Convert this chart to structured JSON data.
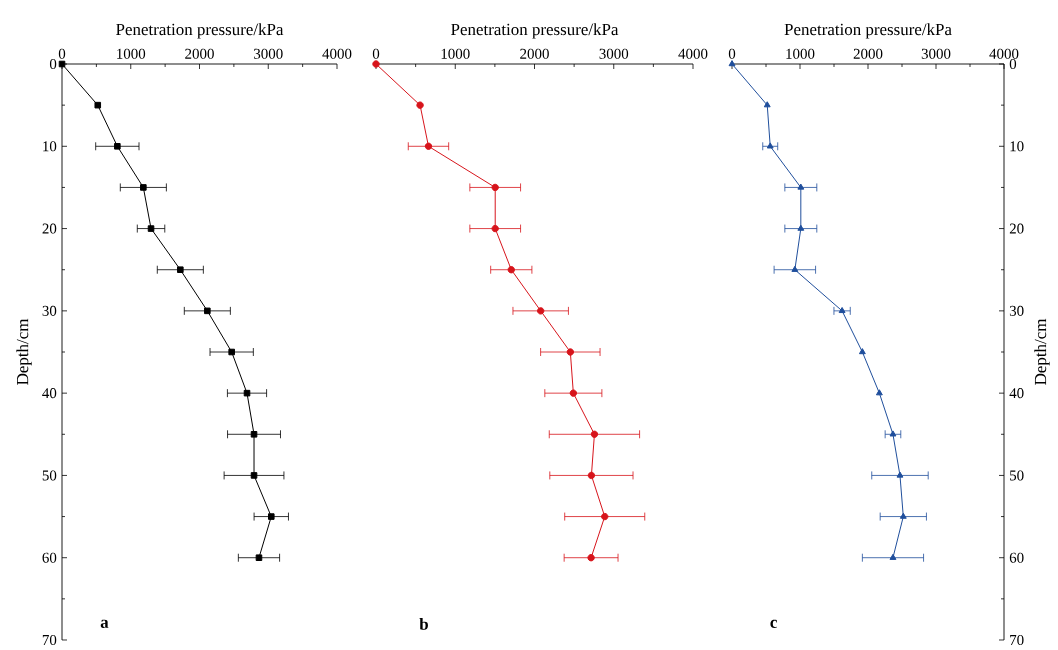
{
  "chart_data": [
    {
      "type": "line",
      "xlabel": "Penetration pressure/kPa",
      "ylabel": "Depth/cm",
      "annotations": [
        "a"
      ],
      "marker": "square",
      "xlim": [
        0,
        4000
      ],
      "xticks": [
        0,
        {
          "value": 500,
          "label": null
        },
        1000,
        {
          "value": 1500,
          "label": null
        },
        2000,
        {
          "value": 2500,
          "label": null
        },
        3000,
        {
          "value": 3500,
          "label": null
        },
        4000
      ],
      "ylim": [
        70,
        0
      ],
      "yticks": [
        0,
        {
          "value": 5,
          "label": null
        },
        10,
        {
          "value": 15,
          "label": null
        },
        20,
        {
          "value": 25,
          "label": null
        },
        30,
        {
          "value": 35,
          "label": null
        },
        40,
        {
          "value": 45,
          "label": null
        },
        50,
        {
          "value": 55,
          "label": null
        },
        60,
        {
          "value": 65,
          "label": null
        },
        70
      ],
      "series": [
        {
          "color": "#000000",
          "x": [
            0,
            520,
            805,
            1183,
            1295,
            1721,
            2114,
            2468,
            2691,
            2793,
            2793,
            3044,
            2865
          ],
          "values": [
            0,
            5,
            10,
            15,
            20,
            25,
            30,
            35,
            40,
            45,
            50,
            55,
            60
          ],
          "xerrors": [
            null,
            null,
            315,
            335,
            200,
            335,
            335,
            315,
            285,
            385,
            435,
            250,
            300
          ]
        }
      ]
    },
    {
      "type": "line",
      "xlabel": "Penetration pressure/kPa",
      "annotations": [
        "b"
      ],
      "marker": "circle",
      "tick_labels": "x",
      "xlim": [
        0,
        4000
      ],
      "xticks": [
        0,
        {
          "value": 500,
          "label": null
        },
        1000,
        {
          "value": 1500,
          "label": null
        },
        2000,
        {
          "value": 2500,
          "label": null
        },
        3000,
        {
          "value": 3500,
          "label": null
        },
        4000
      ],
      "ylim": [
        70,
        0
      ],
      "series": [
        {
          "color": "#d7141b",
          "x": [
            0,
            556,
            662,
            1504,
            1504,
            1707,
            2078,
            2452,
            2490,
            2756,
            2718,
            2886,
            2714
          ],
          "values": [
            0,
            5,
            10,
            15,
            20,
            25,
            30,
            35,
            40,
            45,
            50,
            55,
            60
          ],
          "xerrors": [
            null,
            null,
            255,
            320,
            320,
            260,
            350,
            375,
            360,
            570,
            525,
            505,
            340
          ]
        }
      ]
    },
    {
      "type": "line",
      "xlabel": "Penetration pressure/kPa",
      "y2label": "Depth/cm",
      "annotations": [
        "c"
      ],
      "marker": "triangle",
      "xlim": [
        0,
        4000
      ],
      "xticks": [
        0,
        {
          "value": 500,
          "label": null
        },
        1000,
        {
          "value": 1500,
          "label": null
        },
        2000,
        {
          "value": 2500,
          "label": null
        },
        3000,
        {
          "value": 3500,
          "label": null
        },
        4000
      ],
      "y2lim": [
        70,
        0
      ],
      "y2ticks": [
        0,
        {
          "value": 5,
          "label": null
        },
        10,
        {
          "value": 15,
          "label": null
        },
        20,
        {
          "value": 25,
          "label": null
        },
        30,
        {
          "value": 35,
          "label": null
        },
        40,
        {
          "value": 45,
          "label": null
        },
        50,
        {
          "value": 55,
          "label": null
        },
        60,
        {
          "value": 65,
          "label": null
        },
        70
      ],
      "series": [
        {
          "color": "#1f4e9c",
          "axis": "y2",
          "x": [
            0,
            518,
            562,
            1012,
            1012,
            924,
            1619,
            1917,
            2167,
            2367,
            2470,
            2519,
            2367
          ],
          "values": [
            0,
            5,
            10,
            15,
            20,
            25,
            30,
            35,
            40,
            45,
            50,
            55,
            60
          ],
          "xerrors": [
            null,
            null,
            110,
            235,
            235,
            305,
            120,
            null,
            null,
            115,
            415,
            340,
            450
          ]
        }
      ]
    }
  ]
}
